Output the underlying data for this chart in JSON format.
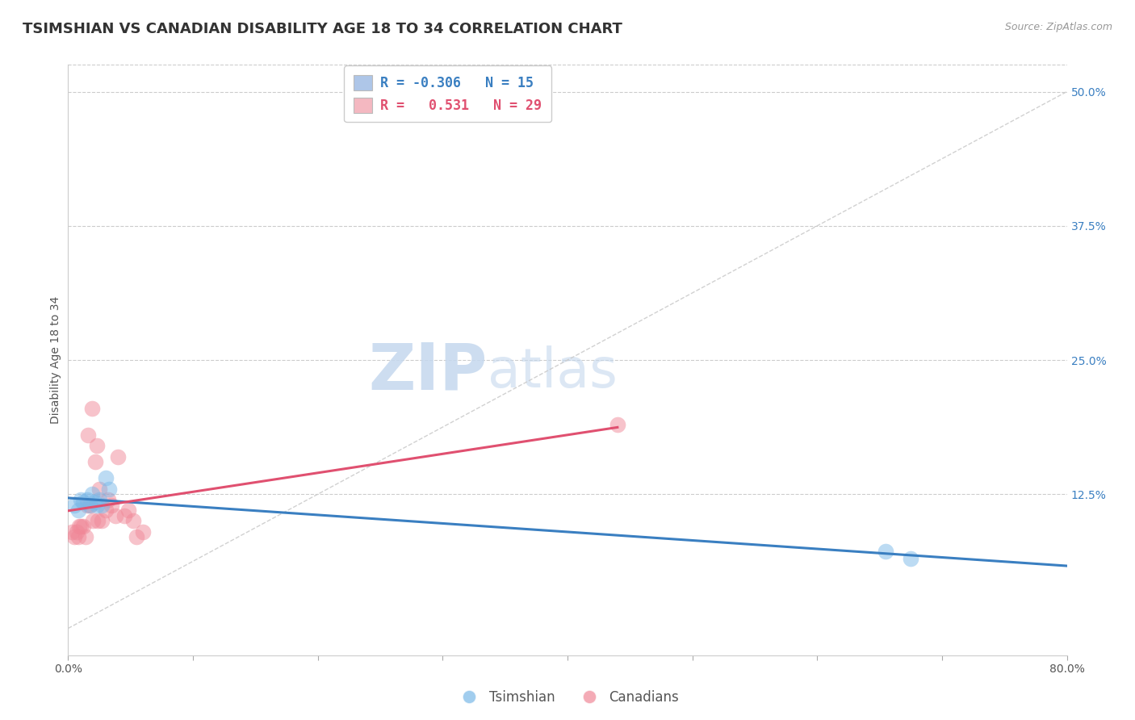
{
  "title": "TSIMSHIAN VS CANADIAN DISABILITY AGE 18 TO 34 CORRELATION CHART",
  "source": "Source: ZipAtlas.com",
  "ylabel_label": "Disability Age 18 to 34",
  "xlim": [
    0.0,
    0.8
  ],
  "ylim": [
    -0.025,
    0.525
  ],
  "background_color": "#ffffff",
  "grid_color": "#cccccc",
  "legend_box_color_blue": "#aec6e8",
  "legend_box_color_pink": "#f4b8c1",
  "tsimshian_color": "#7ab8e8",
  "canadian_color": "#f08898",
  "blue_line_color": "#3a7fc1",
  "pink_line_color": "#e05070",
  "diag_line_color": "#cccccc",
  "legend_R_blue": "-0.306",
  "legend_N_blue": "15",
  "legend_R_pink": "0.531",
  "legend_N_pink": "29",
  "legend_label_blue": "Tsimshian",
  "legend_label_pink": "Canadians",
  "tsimshian_x": [
    0.005,
    0.008,
    0.01,
    0.012,
    0.015,
    0.017,
    0.019,
    0.021,
    0.023,
    0.025,
    0.027,
    0.03,
    0.033,
    0.655,
    0.675
  ],
  "tsimshian_y": [
    0.115,
    0.11,
    0.12,
    0.118,
    0.12,
    0.115,
    0.125,
    0.118,
    0.115,
    0.12,
    0.115,
    0.14,
    0.13,
    0.072,
    0.065
  ],
  "canadian_x": [
    0.003,
    0.005,
    0.007,
    0.008,
    0.009,
    0.01,
    0.012,
    0.014,
    0.015,
    0.016,
    0.018,
    0.019,
    0.02,
    0.022,
    0.023,
    0.024,
    0.025,
    0.027,
    0.03,
    0.032,
    0.035,
    0.038,
    0.04,
    0.045,
    0.048,
    0.052,
    0.055,
    0.06,
    0.44
  ],
  "canadian_y": [
    0.09,
    0.085,
    0.09,
    0.085,
    0.095,
    0.095,
    0.095,
    0.085,
    0.115,
    0.18,
    0.115,
    0.205,
    0.1,
    0.155,
    0.17,
    0.1,
    0.13,
    0.1,
    0.11,
    0.12,
    0.115,
    0.105,
    0.16,
    0.105,
    0.11,
    0.1,
    0.085,
    0.09,
    0.19
  ],
  "watermark_zip": "ZIP",
  "watermark_atlas": "atlas",
  "watermark_color": "#c5d8ee",
  "title_fontsize": 13,
  "axis_label_fontsize": 10,
  "tick_fontsize": 10,
  "source_fontsize": 9,
  "legend_fontsize": 12,
  "ytick_values": [
    0.125,
    0.25,
    0.375,
    0.5
  ],
  "ytick_labels": [
    "12.5%",
    "25.0%",
    "37.5%",
    "50.0%"
  ],
  "xtick_values": [
    0.0,
    0.1,
    0.2,
    0.3,
    0.4,
    0.5,
    0.6,
    0.7,
    0.8
  ],
  "xtick_labels_show": [
    "0.0%",
    "",
    "",
    "",
    "",
    "",
    "",
    "",
    "80.0%"
  ]
}
